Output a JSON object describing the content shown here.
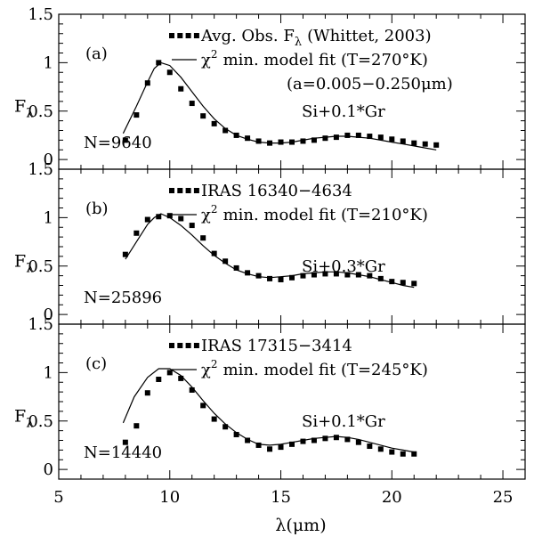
{
  "figure": {
    "xlabel_symbol": "λ",
    "xlabel_unit": "(μm)",
    "ylabel_main": "F",
    "ylabel_sub": "λ",
    "xticks": [
      "5",
      "10",
      "15",
      "20",
      "25"
    ],
    "yticks": [
      "0",
      "0.5",
      "1",
      "1.5"
    ]
  },
  "chart_data": [
    {
      "type": "line",
      "panel_label": "(a)",
      "n_label": "N=9640",
      "composition_label": "Si+0.1*Gr",
      "legend_observed": "Avg. Obs. F",
      "legend_observed_sub": "λ",
      "legend_observed_tail": "(Whittet, 2003)",
      "legend_model_prefix": "χ",
      "legend_model_sup": "2",
      "legend_model_tail": "min. model fit (T=270°K)",
      "extra_line": "(a=0.005−0.250μm)",
      "xlim": [
        5,
        26
      ],
      "ylim": [
        -0.1,
        1.5
      ],
      "grid": false,
      "series": [
        {
          "name": "Avg. Obs. Fλ (Whittet, 2003)",
          "kind": "points",
          "x": [
            8.0,
            8.5,
            9.0,
            9.5,
            10.0,
            10.5,
            11.0,
            11.5,
            12.0,
            12.5,
            13.0,
            13.5,
            14.0,
            14.5,
            15.0,
            15.5,
            16.0,
            16.5,
            17.0,
            17.5,
            18.0,
            18.5,
            19.0,
            19.5,
            20.0,
            20.5,
            21.0,
            21.5,
            22.0
          ],
          "y": [
            0.2,
            0.46,
            0.79,
            1.0,
            0.9,
            0.73,
            0.58,
            0.45,
            0.37,
            0.3,
            0.25,
            0.22,
            0.19,
            0.17,
            0.18,
            0.18,
            0.19,
            0.2,
            0.22,
            0.23,
            0.25,
            0.25,
            0.24,
            0.23,
            0.21,
            0.19,
            0.17,
            0.16,
            0.15
          ]
        },
        {
          "name": "χ2 min. model fit (T=270°K)",
          "kind": "line",
          "x": [
            7.9,
            8.5,
            9.0,
            9.3,
            9.6,
            10.0,
            10.5,
            11.0,
            11.5,
            12.0,
            12.5,
            13.0,
            13.5,
            14.0,
            14.5,
            15.0,
            15.5,
            16.0,
            16.5,
            17.0,
            17.5,
            18.0,
            18.5,
            19.0,
            19.5,
            20.0,
            20.5,
            21.0,
            21.5,
            22.0
          ],
          "y": [
            0.27,
            0.55,
            0.8,
            0.94,
            1.0,
            0.97,
            0.85,
            0.7,
            0.55,
            0.42,
            0.32,
            0.25,
            0.21,
            0.18,
            0.17,
            0.17,
            0.18,
            0.2,
            0.22,
            0.23,
            0.24,
            0.24,
            0.23,
            0.22,
            0.2,
            0.18,
            0.16,
            0.14,
            0.12,
            0.1
          ]
        }
      ]
    },
    {
      "type": "line",
      "panel_label": "(b)",
      "n_label": "N=25896",
      "composition_label": "Si+0.3*Gr",
      "legend_observed": "IRAS 16340−4634",
      "legend_model_prefix": "χ",
      "legend_model_sup": "2",
      "legend_model_tail": "min. model fit (T=210°K)",
      "xlim": [
        5,
        26
      ],
      "ylim": [
        -0.1,
        1.5
      ],
      "grid": false,
      "series": [
        {
          "name": "IRAS 16340−4634",
          "kind": "points",
          "x": [
            8.0,
            8.5,
            9.0,
            9.5,
            10.0,
            10.5,
            11.0,
            11.5,
            12.0,
            12.5,
            13.0,
            13.5,
            14.0,
            14.5,
            15.0,
            15.5,
            16.0,
            16.5,
            17.0,
            17.5,
            18.0,
            18.5,
            19.0,
            19.5,
            20.0,
            20.5,
            21.0
          ],
          "y": [
            0.62,
            0.84,
            0.98,
            1.01,
            1.02,
            0.99,
            0.92,
            0.79,
            0.63,
            0.55,
            0.48,
            0.43,
            0.4,
            0.37,
            0.36,
            0.38,
            0.4,
            0.41,
            0.42,
            0.42,
            0.41,
            0.41,
            0.4,
            0.37,
            0.34,
            0.33,
            0.32
          ]
        },
        {
          "name": "χ2 min. model fit (T=210°K)",
          "kind": "line",
          "x": [
            8.0,
            8.5,
            9.0,
            9.3,
            9.6,
            10.0,
            10.5,
            11.0,
            11.5,
            12.0,
            12.5,
            13.0,
            13.5,
            14.0,
            14.5,
            15.0,
            15.5,
            16.0,
            16.5,
            17.0,
            17.5,
            18.0,
            18.5,
            19.0,
            19.5,
            20.0,
            20.5,
            21.0
          ],
          "y": [
            0.57,
            0.75,
            0.93,
            1.0,
            1.04,
            1.0,
            0.92,
            0.82,
            0.71,
            0.61,
            0.53,
            0.46,
            0.42,
            0.39,
            0.38,
            0.39,
            0.4,
            0.42,
            0.43,
            0.44,
            0.44,
            0.43,
            0.41,
            0.39,
            0.36,
            0.33,
            0.3,
            0.28
          ]
        }
      ]
    },
    {
      "type": "line",
      "panel_label": "(c)",
      "n_label": "N=14440",
      "composition_label": "Si+0.1*Gr",
      "legend_observed": "IRAS 17315−3414",
      "legend_model_prefix": "χ",
      "legend_model_sup": "2",
      "legend_model_tail": "min. model fit (T=245°K)",
      "xlim": [
        5,
        26
      ],
      "ylim": [
        -0.1,
        1.5
      ],
      "grid": false,
      "series": [
        {
          "name": "IRAS 17315−3414",
          "kind": "points",
          "x": [
            8.0,
            8.5,
            9.0,
            9.5,
            10.0,
            10.5,
            11.0,
            11.5,
            12.0,
            12.5,
            13.0,
            13.5,
            14.0,
            14.5,
            15.0,
            15.5,
            16.0,
            16.5,
            17.0,
            17.5,
            18.0,
            18.5,
            19.0,
            19.5,
            20.0,
            20.5,
            21.0
          ],
          "y": [
            0.28,
            0.45,
            0.79,
            0.93,
            1.0,
            0.94,
            0.82,
            0.66,
            0.52,
            0.44,
            0.36,
            0.3,
            0.25,
            0.21,
            0.23,
            0.26,
            0.29,
            0.3,
            0.32,
            0.33,
            0.31,
            0.28,
            0.24,
            0.21,
            0.18,
            0.16,
            0.16
          ]
        },
        {
          "name": "χ2 min. model fit (T=245°K)",
          "kind": "line",
          "x": [
            7.9,
            8.4,
            9.0,
            9.5,
            10.0,
            10.5,
            11.0,
            11.5,
            12.0,
            12.5,
            13.0,
            13.5,
            14.0,
            14.5,
            15.0,
            15.5,
            16.0,
            16.5,
            17.0,
            17.5,
            18.0,
            18.5,
            19.0,
            19.5,
            20.0,
            20.5,
            21.0
          ],
          "y": [
            0.48,
            0.75,
            0.95,
            1.04,
            1.04,
            0.97,
            0.85,
            0.71,
            0.58,
            0.47,
            0.38,
            0.31,
            0.26,
            0.25,
            0.26,
            0.28,
            0.3,
            0.32,
            0.33,
            0.34,
            0.33,
            0.31,
            0.28,
            0.25,
            0.22,
            0.2,
            0.18
          ]
        }
      ]
    }
  ]
}
